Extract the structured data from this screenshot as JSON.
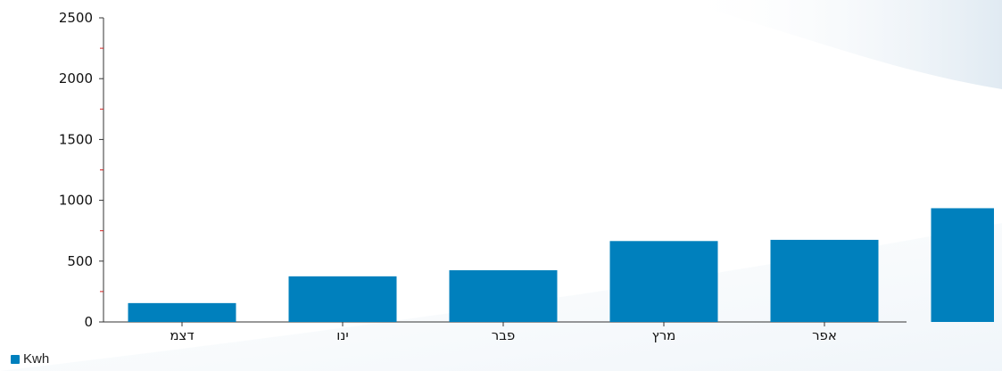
{
  "chart_data": {
    "type": "bar",
    "categories": [
      "דצמ",
      "ינו",
      "פבר",
      "מרץ",
      "אפר",
      ""
    ],
    "series": [
      {
        "name": "Kwh",
        "values": [
          155,
          375,
          425,
          665,
          675,
          935
        ]
      }
    ],
    "ylim": [
      0,
      2500
    ],
    "yticks": [
      "0",
      "500",
      "1000",
      "1500",
      "2000",
      "2500"
    ],
    "xlabel": "",
    "ylabel": "",
    "legend": {
      "position": "bottom-left",
      "label": "Kwh"
    },
    "colors": {
      "bar": "#0080bd",
      "axis": "#333333",
      "minor_tick": "#d22222"
    },
    "grid": false
  }
}
